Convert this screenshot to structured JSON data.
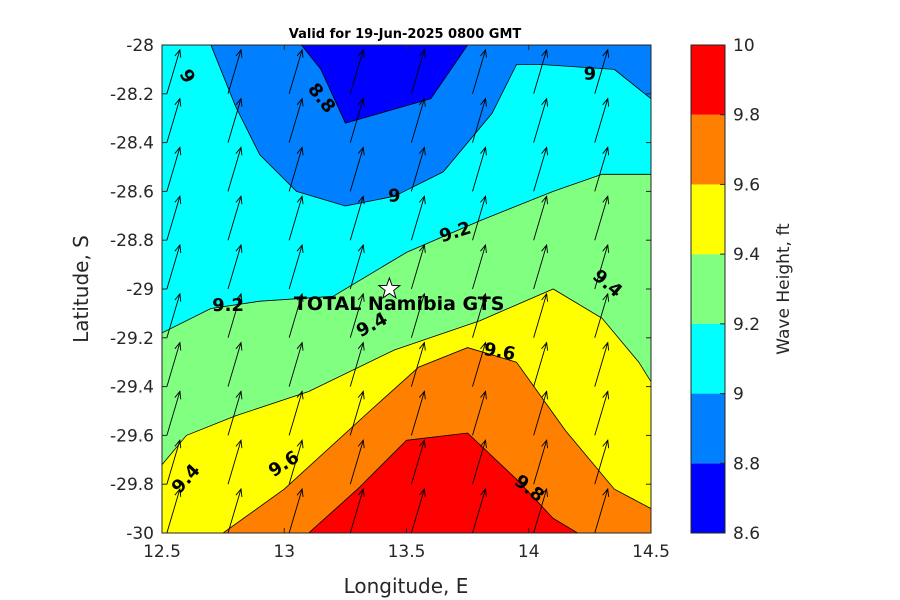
{
  "chart_data": {
    "type": "contour",
    "title": "Valid for 19-Jun-2025 0800 GMT",
    "xlabel": "Longitude, E",
    "ylabel": "Latitude, S",
    "xlim": [
      12.5,
      14.5
    ],
    "ylim": [
      -30,
      -28
    ],
    "x_ticks": [
      12.5,
      13,
      13.5,
      14,
      14.5
    ],
    "x_tick_labels": [
      "12.5",
      "13",
      "13.5",
      "14",
      "14.5"
    ],
    "y_ticks": [
      -28,
      -28.2,
      -28.4,
      -28.6,
      -28.8,
      -29,
      -29.2,
      -29.4,
      -29.6,
      -29.8,
      -30
    ],
    "y_tick_labels": [
      "-28",
      "-28.2",
      "-28.4",
      "-28.6",
      "-28.8",
      "-29",
      "-29.2",
      "-29.4",
      "-29.6",
      "-29.8",
      "-30"
    ],
    "colorbar": {
      "label": "Wave Height, ft",
      "levels": [
        8.6,
        8.8,
        9.0,
        9.2,
        9.4,
        9.6,
        9.8,
        10.0
      ],
      "tick_labels": [
        "8.6",
        "8.8",
        "9",
        "9.2",
        "9.4",
        "9.6",
        "9.8",
        "10"
      ],
      "colors": [
        "#0000ff",
        "#0080ff",
        "#00ffff",
        "#80ff80",
        "#ffff00",
        "#ff8000",
        "#ff0000"
      ]
    },
    "contour_lines": [
      {
        "level": 8.8,
        "points": [
          [
            13.07,
            -28.0
          ],
          [
            13.15,
            -28.1
          ],
          [
            13.25,
            -28.32
          ],
          [
            13.6,
            -28.22
          ],
          [
            13.75,
            -28.0
          ]
        ]
      },
      {
        "level": 9.0,
        "points": [
          [
            12.7,
            -28.0
          ],
          [
            12.8,
            -28.25
          ],
          [
            12.9,
            -28.45
          ],
          [
            13.05,
            -28.6
          ],
          [
            13.25,
            -28.66
          ],
          [
            13.45,
            -28.62
          ],
          [
            13.65,
            -28.52
          ],
          [
            13.85,
            -28.28
          ],
          [
            13.95,
            -28.08
          ],
          [
            14.05,
            -28.08
          ],
          [
            14.35,
            -28.1
          ],
          [
            14.5,
            -28.22
          ]
        ]
      },
      {
        "level": 9.2,
        "points": [
          [
            12.5,
            -29.18
          ],
          [
            12.7,
            -29.08
          ],
          [
            12.9,
            -29.05
          ],
          [
            13.2,
            -29.03
          ],
          [
            13.5,
            -28.85
          ],
          [
            13.8,
            -28.72
          ],
          [
            14.1,
            -28.6
          ],
          [
            14.3,
            -28.53
          ],
          [
            14.5,
            -28.53
          ]
        ]
      },
      {
        "level": 9.4,
        "points": [
          [
            12.5,
            -29.72
          ],
          [
            12.6,
            -29.6
          ],
          [
            12.8,
            -29.52
          ],
          [
            13.1,
            -29.42
          ],
          [
            13.45,
            -29.25
          ],
          [
            13.8,
            -29.13
          ],
          [
            14.1,
            -29.0
          ],
          [
            14.3,
            -29.12
          ],
          [
            14.45,
            -29.3
          ],
          [
            14.5,
            -29.38
          ]
        ]
      },
      {
        "level": 9.6,
        "points": [
          [
            12.75,
            -30.0
          ],
          [
            13.0,
            -29.82
          ],
          [
            13.35,
            -29.5
          ],
          [
            13.55,
            -29.32
          ],
          [
            13.75,
            -29.24
          ],
          [
            13.95,
            -29.3
          ],
          [
            14.15,
            -29.58
          ],
          [
            14.35,
            -29.82
          ],
          [
            14.5,
            -29.9
          ]
        ]
      },
      {
        "level": 9.8,
        "points": [
          [
            13.1,
            -30.0
          ],
          [
            13.3,
            -29.82
          ],
          [
            13.5,
            -29.62
          ],
          [
            13.75,
            -29.59
          ],
          [
            13.95,
            -29.78
          ],
          [
            14.1,
            -29.94
          ],
          [
            14.2,
            -30.0
          ]
        ]
      }
    ],
    "contour_labels": [
      {
        "text": "9",
        "lon": 12.6,
        "lat": -28.13,
        "rotate": 60
      },
      {
        "text": "8.8",
        "lon": 13.15,
        "lat": -28.22,
        "rotate": 52
      },
      {
        "text": "9",
        "lon": 14.25,
        "lat": -28.12,
        "rotate": 0
      },
      {
        "text": "9",
        "lon": 13.45,
        "lat": -28.62,
        "rotate": 0
      },
      {
        "text": "9.2",
        "lon": 13.7,
        "lat": -28.77,
        "rotate": -18
      },
      {
        "text": "9.2",
        "lon": 12.77,
        "lat": -29.07,
        "rotate": 0
      },
      {
        "text": "9.4",
        "lon": 13.36,
        "lat": -29.15,
        "rotate": -28
      },
      {
        "text": "9.4",
        "lon": 14.32,
        "lat": -28.98,
        "rotate": 40
      },
      {
        "text": "9.6",
        "lon": 13.88,
        "lat": -29.26,
        "rotate": 10
      },
      {
        "text": "9.6",
        "lon": 13.0,
        "lat": -29.72,
        "rotate": -33
      },
      {
        "text": "9.4",
        "lon": 12.6,
        "lat": -29.78,
        "rotate": -48
      },
      {
        "text": "9.8",
        "lon": 14.0,
        "lat": -29.82,
        "rotate": 38
      }
    ],
    "station": {
      "name": "TOTAL Namibia GTS",
      "lon": 13.43,
      "lat": -29.0
    },
    "vectors": {
      "grid_lon_step": 0.25,
      "grid_lat_step": 0.2,
      "direction": "north-north-east"
    }
  }
}
